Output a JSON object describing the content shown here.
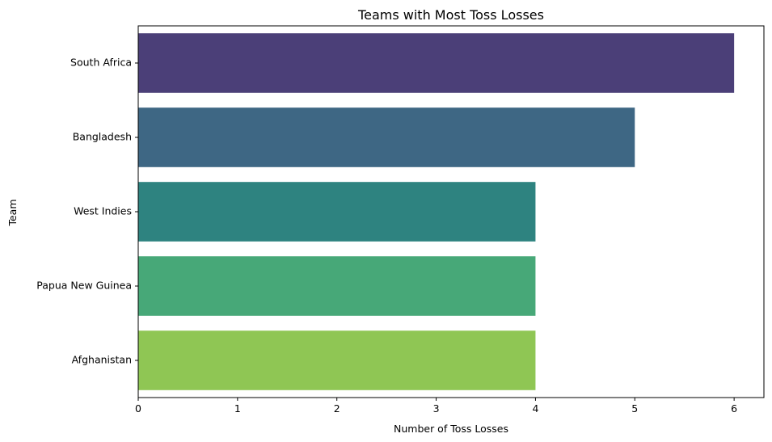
{
  "chart_data": {
    "type": "bar",
    "orientation": "horizontal",
    "title": "Teams with Most Toss Losses",
    "xlabel": "Number of Toss Losses",
    "ylabel": "Team",
    "categories": [
      "South Africa",
      "Bangladesh",
      "West Indies",
      "Papua New Guinea",
      "Afghanistan"
    ],
    "values": [
      6,
      5,
      4,
      4,
      4
    ],
    "colors": [
      "#4b3f78",
      "#3e6784",
      "#2e8380",
      "#47a878",
      "#8fc654"
    ],
    "xlim": [
      0,
      6.3
    ],
    "xticks": [
      0,
      1,
      2,
      3,
      4,
      5,
      6
    ],
    "grid": false,
    "legend": "none"
  }
}
